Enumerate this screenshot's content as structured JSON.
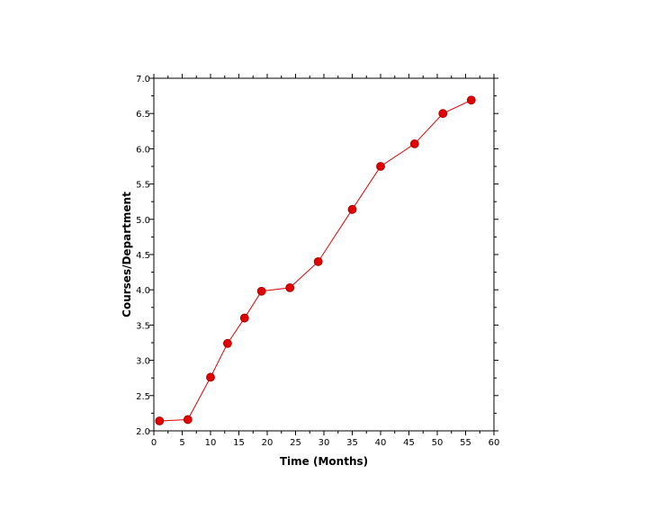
{
  "chart_data": {
    "type": "line",
    "title": "",
    "xlabel": "Time (Months)",
    "ylabel": "Courses/Department",
    "xlim": [
      0,
      60
    ],
    "ylim": [
      2.0,
      7.0
    ],
    "x_ticks": [
      "0",
      "5",
      "10",
      "15",
      "20",
      "25",
      "30",
      "35",
      "40",
      "45",
      "50",
      "55",
      "60"
    ],
    "y_ticks": [
      "2.0",
      "2.5",
      "3.0",
      "3.5",
      "4.0",
      "4.5",
      "5.0",
      "5.5",
      "6.0",
      "6.5",
      "7.0"
    ],
    "grid": false,
    "legend": "none",
    "series": [
      {
        "color": "#e00000",
        "marker": "circle",
        "x": [
          1,
          6,
          10,
          13,
          16,
          19,
          24,
          29,
          35,
          40,
          46,
          51,
          56
        ],
        "y": [
          2.14,
          2.16,
          2.76,
          3.24,
          3.6,
          3.98,
          4.03,
          4.4,
          5.14,
          5.75,
          6.07,
          6.5,
          6.69
        ]
      }
    ]
  }
}
